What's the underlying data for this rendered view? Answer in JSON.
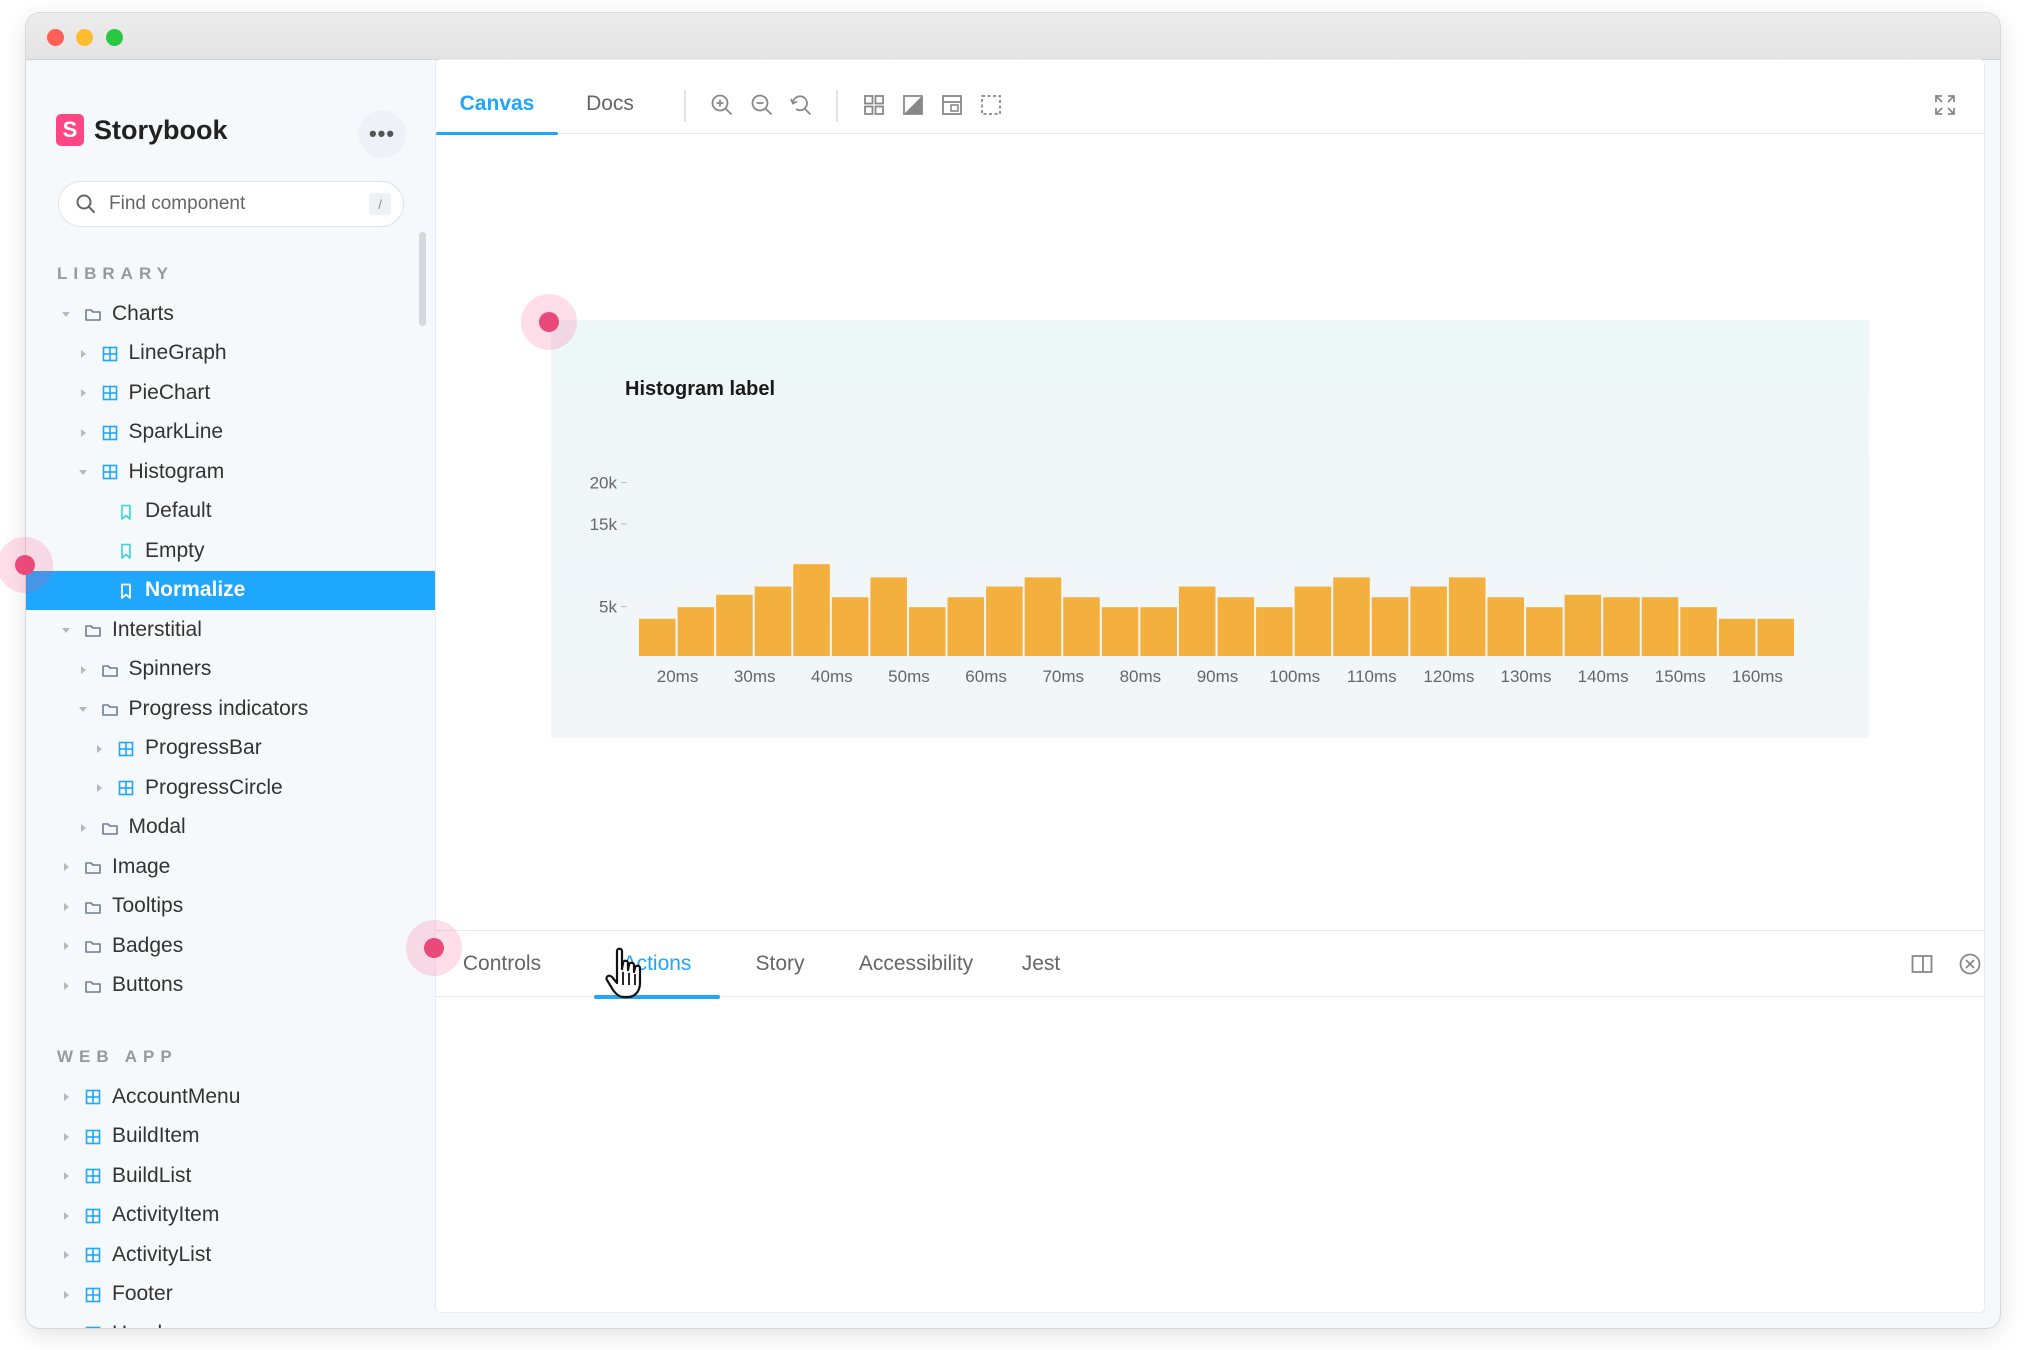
{
  "app": {
    "name": "Storybook",
    "logo_letter": "S",
    "accent": "#1ea7fd",
    "brand_color": "#ff4785"
  },
  "sidebar": {
    "more_label": "•••",
    "search": {
      "placeholder": "Find component",
      "shortcut": "/"
    },
    "library_title": "LIBRARY",
    "library": [
      {
        "label": "Charts",
        "level": 0,
        "icon": "folder-icon",
        "caret": "down"
      },
      {
        "label": "LineGraph",
        "level": 1,
        "icon": "component-icon",
        "caret": "right"
      },
      {
        "label": "PieChart",
        "level": 1,
        "icon": "component-icon",
        "caret": "right"
      },
      {
        "label": "SparkLine",
        "level": 1,
        "icon": "component-icon",
        "caret": "right"
      },
      {
        "label": "Histogram",
        "level": 1,
        "icon": "component-icon",
        "caret": "down"
      },
      {
        "label": "Default",
        "level": 2,
        "icon": "story-icon",
        "caret": "none"
      },
      {
        "label": "Empty",
        "level": 2,
        "icon": "story-icon",
        "caret": "none"
      },
      {
        "label": "Normalize",
        "level": 2,
        "icon": "story-icon",
        "caret": "none",
        "selected": true
      },
      {
        "label": "Interstitial",
        "level": 0,
        "icon": "folder-icon",
        "caret": "down"
      },
      {
        "label": "Spinners",
        "level": 1,
        "icon": "folder-icon",
        "caret": "right"
      },
      {
        "label": "Progress indicators",
        "level": 1,
        "icon": "folder-icon",
        "caret": "down"
      },
      {
        "label": "ProgressBar",
        "level": 2,
        "icon": "component-icon",
        "caret": "right"
      },
      {
        "label": "ProgressCircle",
        "level": 2,
        "icon": "component-icon",
        "caret": "right"
      },
      {
        "label": "Modal",
        "level": 1,
        "icon": "folder-icon",
        "caret": "right"
      },
      {
        "label": "Image",
        "level": 0,
        "icon": "folder-icon",
        "caret": "right"
      },
      {
        "label": "Tooltips",
        "level": 0,
        "icon": "folder-icon",
        "caret": "right"
      },
      {
        "label": "Badges",
        "level": 0,
        "icon": "folder-icon",
        "caret": "right"
      },
      {
        "label": "Buttons",
        "level": 0,
        "icon": "folder-icon",
        "caret": "right"
      }
    ],
    "webapp_title": "WEB APP",
    "webapp": [
      {
        "label": "AccountMenu",
        "level": 0,
        "icon": "component-icon",
        "caret": "right"
      },
      {
        "label": "BuildItem",
        "level": 0,
        "icon": "component-icon",
        "caret": "right"
      },
      {
        "label": "BuildList",
        "level": 0,
        "icon": "component-icon",
        "caret": "right"
      },
      {
        "label": "ActivityItem",
        "level": 0,
        "icon": "component-icon",
        "caret": "right"
      },
      {
        "label": "ActivityList",
        "level": 0,
        "icon": "component-icon",
        "caret": "right"
      },
      {
        "label": "Footer",
        "level": 0,
        "icon": "component-icon",
        "caret": "right"
      },
      {
        "label": "Header",
        "level": 0,
        "icon": "component-icon",
        "caret": "right"
      }
    ]
  },
  "toolbar": {
    "tabs": [
      {
        "label": "Canvas",
        "active": true
      },
      {
        "label": "Docs",
        "active": false
      }
    ],
    "tools": [
      "zoom-in-icon",
      "zoom-out-icon",
      "reset-zoom-icon",
      "grid-icon",
      "background-icon",
      "viewport-icon",
      "outline-icon"
    ],
    "fullscreen": "fullscreen-icon"
  },
  "chart_data": {
    "type": "bar",
    "title": "Histogram label",
    "bar_color": "#f4b03f",
    "y_ticks": [
      "20k",
      "15k",
      "5k"
    ],
    "x_ticks": [
      "20ms",
      "30ms",
      "40ms",
      "50ms",
      "60ms",
      "70ms",
      "80ms",
      "90ms",
      "100ms",
      "110ms",
      "120ms",
      "130ms",
      "140ms",
      "150ms",
      "160ms"
    ],
    "values": [
      4500,
      5900,
      7400,
      8400,
      11100,
      7100,
      9500,
      5900,
      7100,
      8400,
      9500,
      7100,
      5900,
      5900,
      8400,
      7100,
      5900,
      8400,
      9500,
      7100,
      8400,
      9500,
      7100,
      5900,
      7400,
      7100,
      7100,
      5900,
      4500,
      4500
    ],
    "ylim": [
      0,
      22000
    ]
  },
  "addons": {
    "tabs": [
      {
        "label": "Controls",
        "active": false
      },
      {
        "label": "Actions",
        "active": true
      },
      {
        "label": "Story",
        "active": false
      },
      {
        "label": "Accessibility",
        "active": false
      },
      {
        "label": "Jest",
        "active": false
      }
    ]
  }
}
